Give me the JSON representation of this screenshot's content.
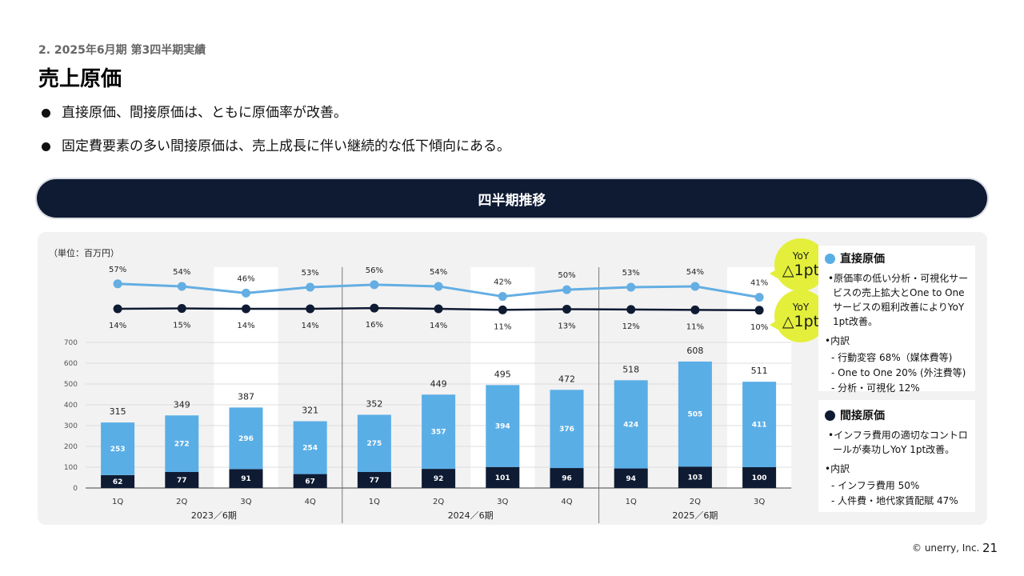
{
  "header": {
    "section": "2. 2025年6月期 第3四半期実績",
    "title": "売上原価",
    "bullets": [
      "直接原価、間接原価は、ともに原価率が改善。",
      "固定費要素の多い間接原価は、売上成長に伴い継続的な低下傾向にある。"
    ]
  },
  "banner": {
    "label": "四半期推移"
  },
  "colors": {
    "navy": "#0f1b33",
    "light_blue": "#5aaee6",
    "line_light": "#64aee3",
    "badge": "#e3ef3a",
    "highlight": "#ffffff",
    "panel": "#f2f2f2"
  },
  "chart_data": {
    "type": "bar",
    "unit_label": "（単位：百万円）",
    "categories": [
      "1Q",
      "2Q",
      "3Q",
      "4Q",
      "1Q",
      "2Q",
      "3Q",
      "4Q",
      "1Q",
      "2Q",
      "3Q"
    ],
    "groups": [
      {
        "label": "2023／6期",
        "count": 4
      },
      {
        "label": "2024／6期",
        "count": 4
      },
      {
        "label": "2025／6期",
        "count": 3
      }
    ],
    "highlighted_categories": [
      2,
      6,
      10
    ],
    "series": [
      {
        "name": "間接原価",
        "values": [
          62,
          77,
          91,
          67,
          77,
          92,
          101,
          96,
          94,
          103,
          100
        ],
        "color": "#0f1b33"
      },
      {
        "name": "直接原価",
        "values": [
          253,
          272,
          296,
          254,
          275,
          357,
          394,
          376,
          424,
          505,
          411
        ],
        "color": "#5aaee6"
      }
    ],
    "totals": [
      315,
      349,
      387,
      321,
      352,
      449,
      495,
      472,
      518,
      608,
      511
    ],
    "direct_rate_pct": [
      57,
      54,
      46,
      53,
      56,
      54,
      42,
      50,
      53,
      54,
      41
    ],
    "indirect_rate_pct": [
      14,
      15,
      14,
      14,
      16,
      14,
      11,
      13,
      12,
      11,
      10
    ],
    "y_axis": {
      "min": 0,
      "max": 700,
      "ticks": [
        0,
        100,
        200,
        300,
        400,
        500,
        600,
        700
      ]
    },
    "grid": true
  },
  "yoy_badges": [
    {
      "line1": "YoY",
      "line2": "△1pt"
    },
    {
      "line1": "YoY",
      "line2": "△1pt"
    }
  ],
  "notes": {
    "direct": {
      "title": "直接原価",
      "desc": "•原価率の低い分析・可視化サービスの売上拡大とOne to Oneサービスの粗利改善によりYoY 1pt改善。",
      "sub": "•内訳",
      "items": [
        "- 行動変容 68%（媒体費等)",
        "- One to One 20% (外注費等)",
        "- 分析・可視化 12%"
      ]
    },
    "indirect": {
      "title": "間接原価",
      "desc": "•インフラ費用の適切なコントロールが奏功しYoY 1pt改善。",
      "sub": "•内訳",
      "items": [
        "- インフラ費用 50%",
        "- 人件費・地代家賃配賦 47%"
      ]
    }
  },
  "footer": {
    "copyright": "© unerry, Inc.",
    "page": "21"
  }
}
